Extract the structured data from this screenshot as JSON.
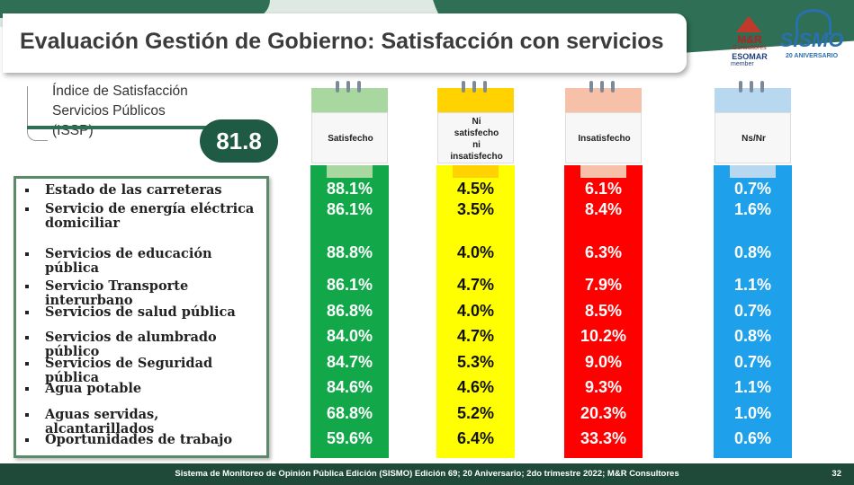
{
  "title": "Evaluación Gestión de Gobierno: Satisfacción con servicios",
  "logos": {
    "mr_name": "M&R",
    "mr_sub": "Consultores",
    "esomar": "ESOMAR",
    "member": "member",
    "sismo": "SISMO",
    "sismo_sub": "20 ANIVERSARIO"
  },
  "issp": {
    "line1": "Índice de Satisfacción",
    "line2": "Servicios Públicos",
    "line3": "(ISSP)",
    "value": "81.8"
  },
  "columns": [
    {
      "label": "Satisfecho",
      "color": "#12a84a",
      "head_color": "#a8d8a0",
      "text_color": "#ffffff",
      "values": [
        "88.1%",
        "86.1%",
        "88.8%",
        "86.1%",
        "86.8%",
        "84.0%",
        "84.7%",
        "84.6%",
        "68.8%",
        "59.6%"
      ]
    },
    {
      "label": "Ni satisfecho ni insatisfecho",
      "color": "#ffff00",
      "head_color": "#ffd200",
      "text_color": "#111111",
      "values": [
        "4.5%",
        "3.5%",
        "4.0%",
        "4.7%",
        "4.0%",
        "4.7%",
        "5.3%",
        "4.6%",
        "5.2%",
        "6.4%"
      ]
    },
    {
      "label": "Insatisfecho",
      "color": "#ff0000",
      "head_color": "#f7c0a8",
      "text_color": "#ffffff",
      "values": [
        "6.1%",
        "8.4%",
        "6.3%",
        "7.9%",
        "8.5%",
        "10.2%",
        "9.0%",
        "9.3%",
        "20.3%",
        "33.3%"
      ]
    },
    {
      "label": "Ns/Nr",
      "color": "#1ea0ea",
      "head_color": "#b8d8f0",
      "text_color": "#ffffff",
      "values": [
        "0.7%",
        "1.6%",
        "0.8%",
        "1.1%",
        "0.7%",
        "0.8%",
        "0.7%",
        "1.1%",
        "1.0%",
        "0.6%"
      ]
    }
  ],
  "items": [
    "Estado de las carreteras",
    "Servicio de energía eléctrica domiciliar",
    "Servicios de educación pública",
    "Servicio Transporte interurbano",
    "Servicios de salud pública",
    "Servicios de alumbrado público",
    "Servicios de Seguridad pública",
    "Agua potable",
    "Aguas servidas, alcantarillados",
    "Oportunidades de trabajo"
  ],
  "footer": {
    "text": "Sistema de Monitoreo de Opinión Pública Edición (SISMO) Edición 69; 20 Aniversario; 2do trimestre 2022; M&R Consultores",
    "page": "32"
  }
}
